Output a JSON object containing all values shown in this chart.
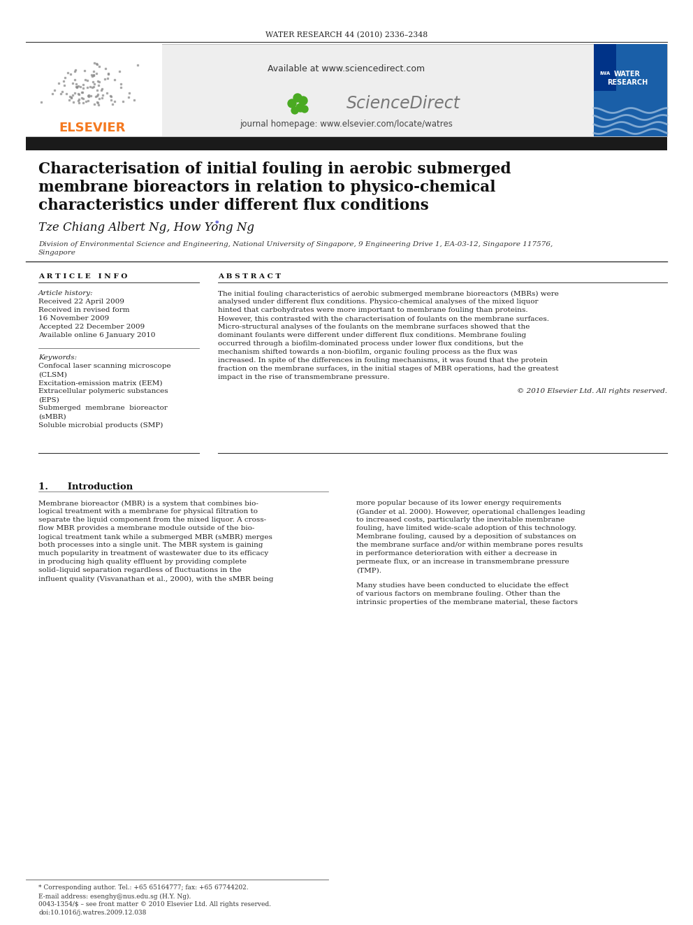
{
  "journal_header": "WATER RESEARCH 44 (2010) 2336–2348",
  "available_text": "Available at www.sciencedirect.com",
  "journal_homepage": "journal homepage: www.elsevier.com/locate/watres",
  "title_line1": "Characterisation of initial fouling in aerobic submerged",
  "title_line2": "membrane bioreactors in relation to physico-chemical",
  "title_line3": "characteristics under different flux conditions",
  "authors": "Tze Chiang Albert Ng, How Yong Ng",
  "authors_star": "*",
  "affiliation": "Division of Environmental Science and Engineering, National University of Singapore, 9 Engineering Drive 1, EA-03-12, Singapore 117576,",
  "affiliation2": "Singapore",
  "article_info_title": "A R T I C L E   I N F O",
  "abstract_title": "A B S T R A C T",
  "article_history_label": "Article history:",
  "received1": "Received 22 April 2009",
  "received2": "Received in revised form",
  "received2b": "16 November 2009",
  "accepted": "Accepted 22 December 2009",
  "available_online": "Available online 6 January 2010",
  "keywords_label": "Keywords:",
  "kw1": "Confocal laser scanning microscope",
  "kw1b": "(CLSM)",
  "kw2": "Excitation-emission matrix (EEM)",
  "kw3": "Extracellular polymeric substances",
  "kw3b": "(EPS)",
  "kw4": "Submerged  membrane  bioreactor",
  "kw4b": "(sMBR)",
  "kw5": "Soluble microbial products (SMP)",
  "copyright": "© 2010 Elsevier Ltd. All rights reserved.",
  "intro_title": "1.      Introduction",
  "footnote_star": "* Corresponding author. Tel.: +65 65164777; fax: +65 67744202.",
  "footnote_email": "E-mail address: esenghy@nus.edu.sg (H.Y. Ng).",
  "footnote_rights": "0043-1354/$ – see front matter © 2010 Elsevier Ltd. All rights reserved.",
  "footnote_doi": "doi:10.1016/j.watres.2009.12.038",
  "bg_color": "#ffffff",
  "header_bg": "#eeeeee",
  "title_bar_color": "#1a1a1a",
  "elsevier_orange": "#f47920",
  "body_font_size": 7.5,
  "abstract_lines": [
    "The initial fouling characteristics of aerobic submerged membrane bioreactors (MBRs) were",
    "analysed under different flux conditions. Physico-chemical analyses of the mixed liquor",
    "hinted that carbohydrates were more important to membrane fouling than proteins.",
    "However, this contrasted with the characterisation of foulants on the membrane surfaces.",
    "Micro-structural analyses of the foulants on the membrane surfaces showed that the",
    "dominant foulants were different under different flux conditions. Membrane fouling",
    "occurred through a biofilm-dominated process under lower flux conditions, but the",
    "mechanism shifted towards a non-biofilm, organic fouling process as the flux was",
    "increased. In spite of the differences in fouling mechanisms, it was found that the protein",
    "fraction on the membrane surfaces, in the initial stages of MBR operations, had the greatest",
    "impact in the rise of transmembrane pressure."
  ],
  "intro_col1": [
    "Membrane bioreactor (MBR) is a system that combines bio-",
    "logical treatment with a membrane for physical filtration to",
    "separate the liquid component from the mixed liquor. A cross-",
    "flow MBR provides a membrane module outside of the bio-",
    "logical treatment tank while a submerged MBR (sMBR) merges",
    "both processes into a single unit. The MBR system is gaining",
    "much popularity in treatment of wastewater due to its efficacy",
    "in producing high quality effluent by providing complete",
    "solid–liquid separation regardless of fluctuations in the",
    "influent quality (Visvanathan et al., 2000), with the sMBR being"
  ],
  "intro_col2_p1": [
    "more popular because of its lower energy requirements",
    "(Gander et al. 2000). However, operational challenges leading",
    "to increased costs, particularly the inevitable membrane",
    "fouling, have limited wide-scale adoption of this technology.",
    "Membrane fouling, caused by a deposition of substances on",
    "the membrane surface and/or within membrane pores results",
    "in performance deterioration with either a decrease in",
    "permeate flux, or an increase in transmembrane pressure",
    "(TMP)."
  ],
  "intro_col2_p2": [
    "Many studies have been conducted to elucidate the effect",
    "of various factors on membrane fouling. Other than the",
    "intrinsic properties of the membrane material, these factors"
  ]
}
